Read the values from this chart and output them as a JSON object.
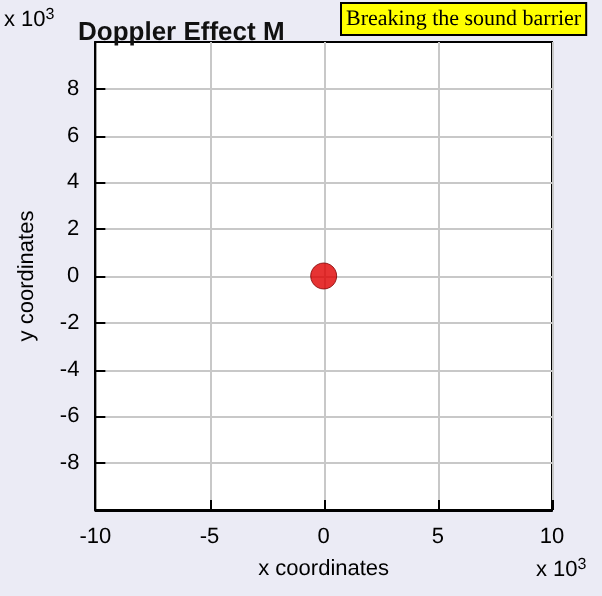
{
  "chart_data": {
    "type": "scatter",
    "title": "Doppler Effect M",
    "xlabel": "x coordinates",
    "ylabel": "y coordinates",
    "x": [
      0
    ],
    "series": [
      {
        "color": "#e00000",
        "values": [
          0
        ]
      }
    ],
    "xlim": [
      -10,
      10
    ],
    "xticks": [
      -10,
      -5,
      0,
      5,
      10
    ],
    "ylim": [
      -10,
      10
    ],
    "yticks": [
      -8,
      -6,
      -4,
      -2,
      0,
      2,
      4,
      6,
      8
    ],
    "grid": true,
    "marker": "circle",
    "annotations": [
      "x 10$^{3}$",
      "x 10$^{3}$",
      "Breaking the sound barrier"
    ]
  }
}
